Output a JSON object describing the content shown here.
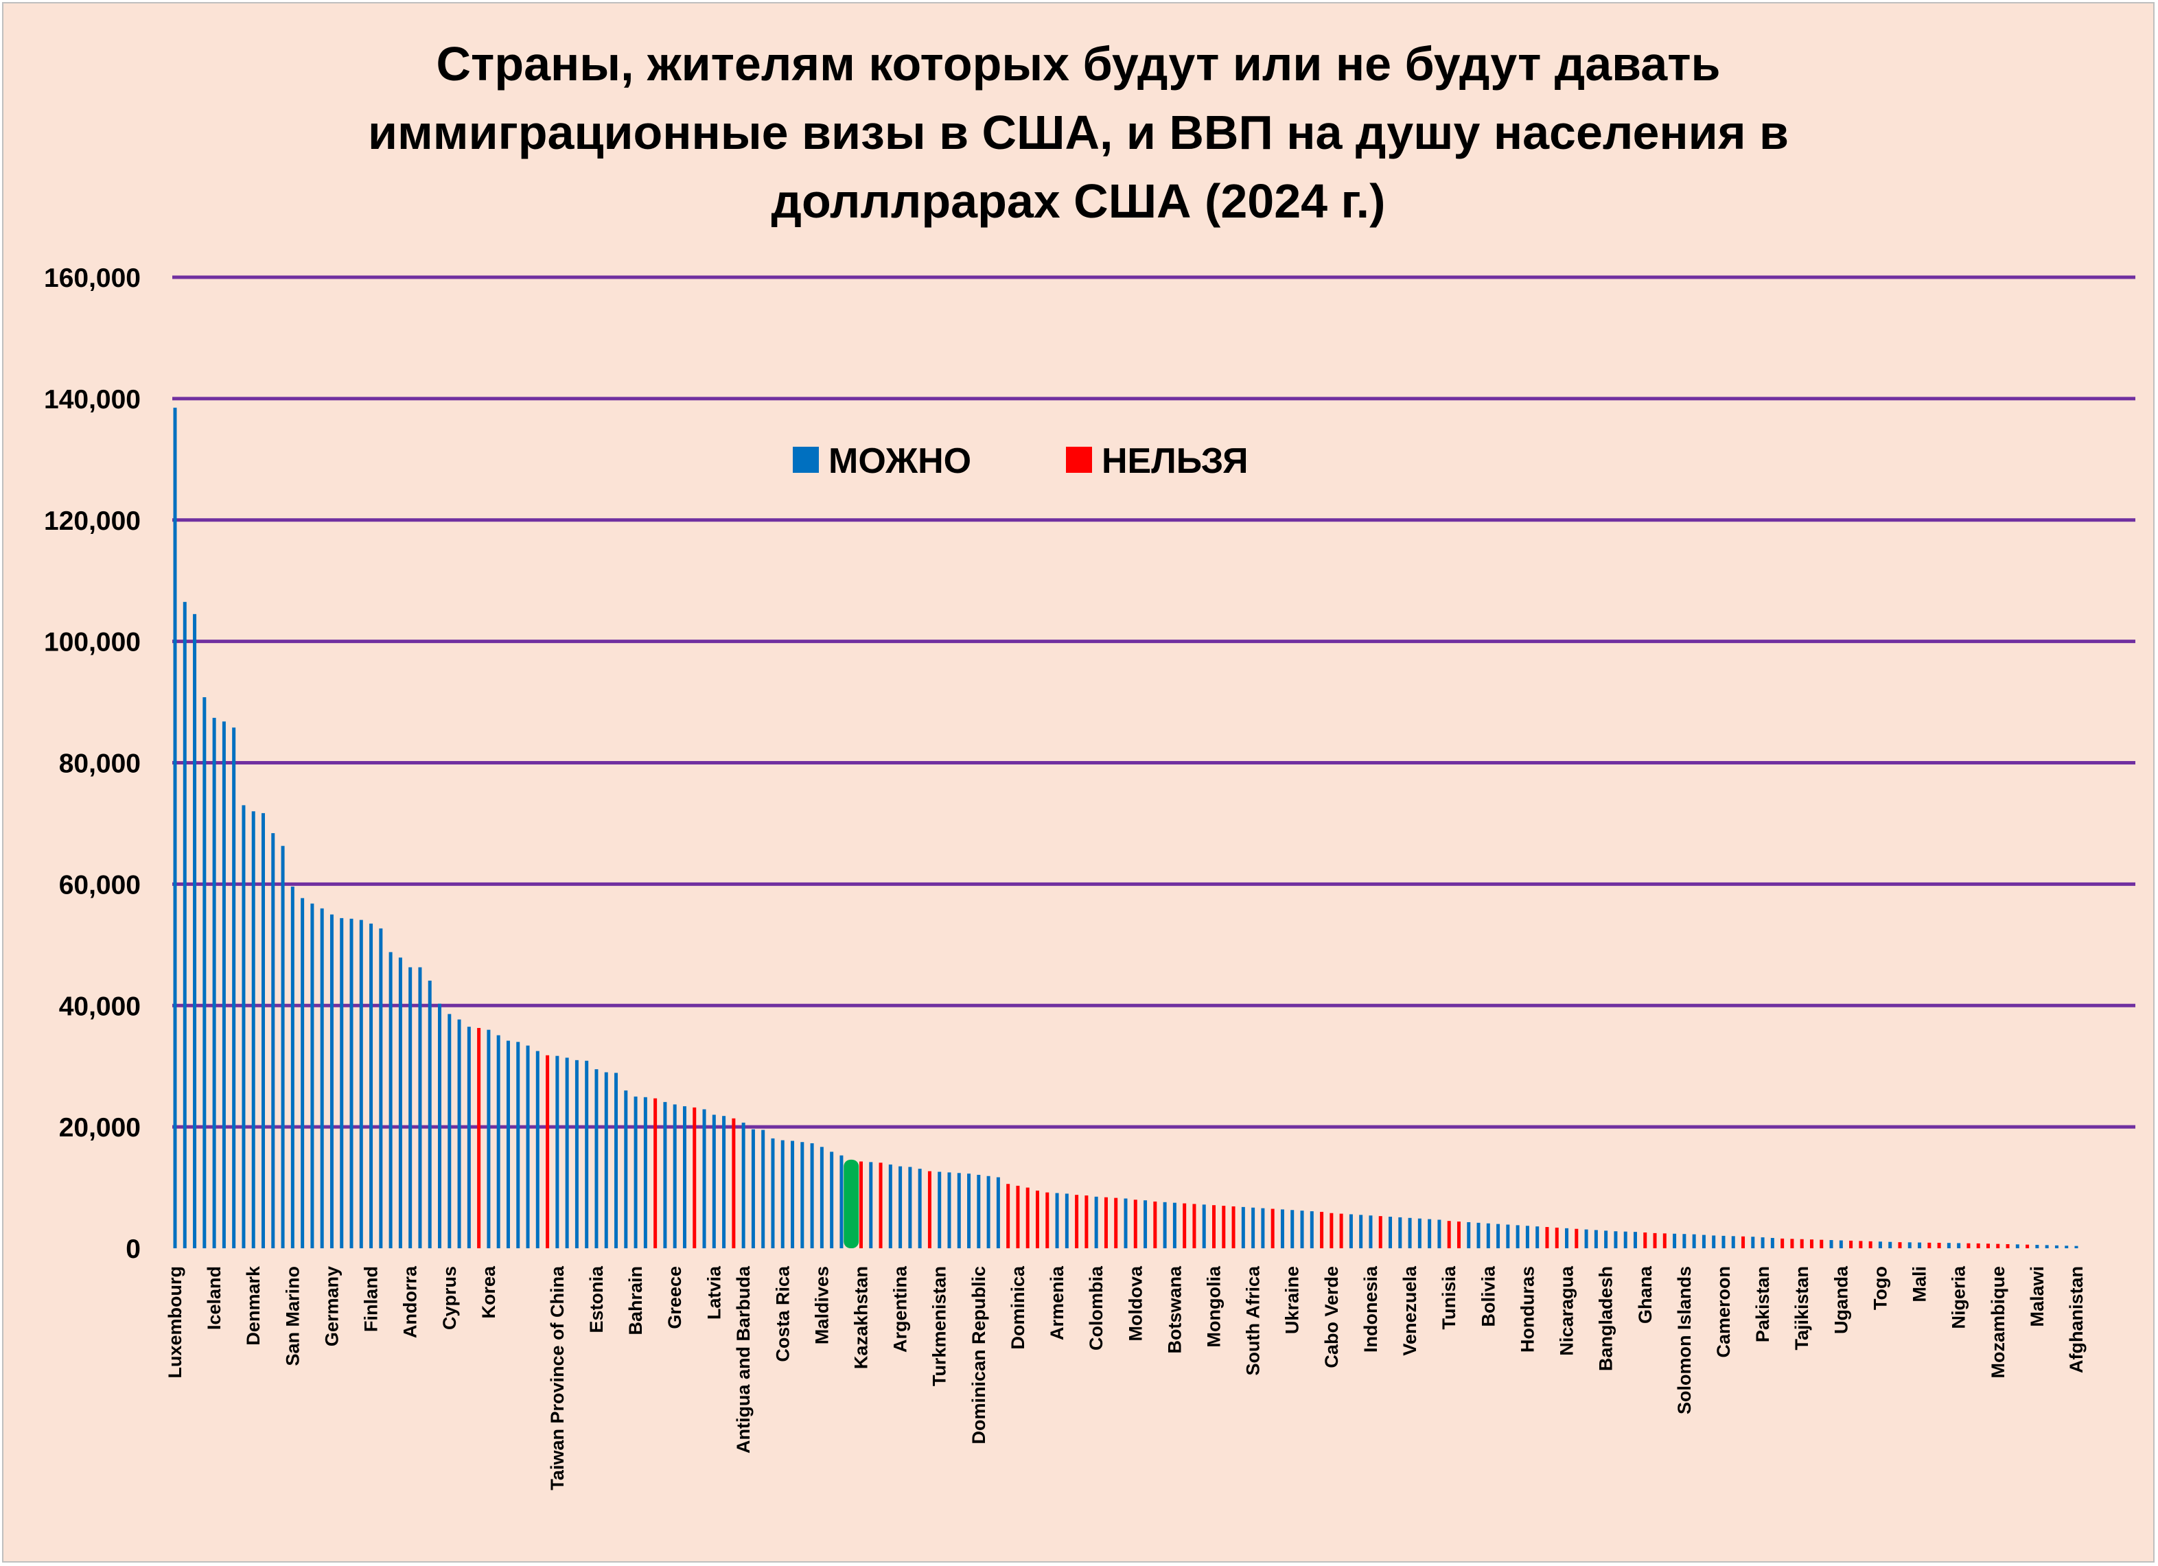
{
  "chart_data": {
    "type": "bar",
    "title_lines": [
      "Страны, жителям которых будут или не будут давать",
      "иммиграционные визы в США, и ВВП на душу населения в",
      "долллрарах США (2024 г.)"
    ],
    "ylim": [
      0,
      160000
    ],
    "yticks": [
      0,
      20000,
      40000,
      60000,
      80000,
      100000,
      120000,
      140000,
      160000
    ],
    "ytick_labels": [
      "0",
      "20,000",
      "40,000",
      "60,000",
      "80,000",
      "100,000",
      "120,000",
      "140,000",
      "160,000"
    ],
    "grid": true,
    "legend_position": "top-center",
    "legend": [
      {
        "key": "allowed",
        "label": "МОЖНО",
        "color": "#0070c0"
      },
      {
        "key": "denied",
        "label": "НЕЛЬЗЯ",
        "color": "#ff0000"
      }
    ],
    "highlight_color": "#00b050",
    "highlight_category": "Kazakhstan",
    "category_labels": [
      "Luxembourg",
      "Iceland",
      "Denmark",
      "San Marino",
      "Germany",
      "Finland",
      "Andorra",
      "Cyprus",
      "Korea",
      "Taiwan Province of China",
      "Estonia",
      "Bahrain",
      "Greece",
      "Latvia",
      "Antigua and Barbuda",
      "Costa Rica",
      "Maldives",
      "Kazakhstan",
      "Argentina",
      "Turkmenistan",
      "Dominican Republic",
      "Dominica",
      "Armenia",
      "Colombia",
      "Moldova",
      "Botswana",
      "Mongolia",
      "South Africa",
      "Ukraine",
      "Cabo Verde",
      "Indonesia",
      "Venezuela",
      "Tunisia",
      "Bolivia",
      "Honduras",
      "Nicaragua",
      "Bangladesh",
      "Ghana",
      "Solomon Islands",
      "Cameroon",
      "Pakistan",
      "Tajikistan",
      "Uganda",
      "Togo",
      "Mali",
      "Nigeria",
      "Mozambique",
      "Malawi",
      "Afghanistan"
    ],
    "label_positions": [
      0,
      4,
      8,
      12,
      16,
      20,
      24,
      28,
      32,
      39,
      43,
      47,
      51,
      55,
      58,
      62,
      66,
      70,
      74,
      78,
      82,
      86,
      90,
      94,
      98,
      102,
      106,
      110,
      114,
      118,
      122,
      126,
      130,
      134,
      138,
      142,
      146,
      150,
      154,
      158,
      162,
      166,
      170,
      174,
      178,
      182,
      186,
      190,
      194
    ],
    "values": [
      138500,
      106500,
      104500,
      90800,
      87400,
      86800,
      85800,
      73000,
      72000,
      71700,
      68400,
      66300,
      59600,
      57700,
      56800,
      56000,
      55000,
      54400,
      54300,
      54100,
      53500,
      52700,
      48800,
      47900,
      46300,
      46300,
      44100,
      40300,
      38600,
      37700,
      36500,
      36300,
      36000,
      35100,
      34200,
      34000,
      33400,
      32500,
      31800,
      31700,
      31400,
      31000,
      30900,
      29500,
      29000,
      28900,
      26000,
      25000,
      24900,
      24700,
      24100,
      23700,
      23400,
      23200,
      22900,
      22000,
      21800,
      21400,
      20700,
      19600,
      19500,
      18100,
      17800,
      17700,
      17500,
      17300,
      16700,
      15900,
      15300,
      14600,
      14300,
      14200,
      14100,
      13800,
      13500,
      13400,
      13100,
      12700,
      12600,
      12500,
      12400,
      12300,
      12100,
      11900,
      11700,
      10600,
      10300,
      10000,
      9500,
      9200,
      9100,
      9000,
      8800,
      8700,
      8500,
      8400,
      8300,
      8200,
      8000,
      7900,
      7700,
      7600,
      7500,
      7400,
      7300,
      7200,
      7100,
      7000,
      6900,
      6800,
      6700,
      6600,
      6500,
      6400,
      6300,
      6200,
      6100,
      6000,
      5800,
      5700,
      5600,
      5500,
      5400,
      5300,
      5200,
      5100,
      5000,
      4900,
      4800,
      4700,
      4500,
      4400,
      4300,
      4200,
      4100,
      4000,
      3900,
      3800,
      3700,
      3600,
      3500,
      3400,
      3300,
      3200,
      3100,
      3000,
      2900,
      2800,
      2750,
      2700,
      2600,
      2500,
      2450,
      2400,
      2350,
      2300,
      2200,
      2100,
      2050,
      2000,
      1950,
      1900,
      1800,
      1700,
      1600,
      1550,
      1500,
      1450,
      1400,
      1350,
      1300,
      1250,
      1200,
      1150,
      1100,
      1050,
      1000,
      980,
      950,
      920,
      900,
      880,
      850,
      820,
      800,
      760,
      720,
      680,
      640,
      600,
      560,
      520,
      470,
      420,
      380
    ],
    "status": [
      "a",
      "a",
      "a",
      "a",
      "a",
      "a",
      "a",
      "a",
      "a",
      "a",
      "a",
      "a",
      "a",
      "a",
      "a",
      "a",
      "a",
      "a",
      "a",
      "a",
      "a",
      "a",
      "a",
      "a",
      "a",
      "a",
      "a",
      "a",
      "a",
      "a",
      "a",
      "d",
      "a",
      "a",
      "a",
      "a",
      "a",
      "a",
      "d",
      "a",
      "a",
      "a",
      "a",
      "a",
      "a",
      "a",
      "a",
      "a",
      "a",
      "d",
      "a",
      "a",
      "a",
      "d",
      "a",
      "a",
      "a",
      "d",
      "a",
      "a",
      "a",
      "a",
      "a",
      "a",
      "a",
      "a",
      "a",
      "a",
      "a",
      "h",
      "d",
      "a",
      "d",
      "a",
      "a",
      "a",
      "a",
      "d",
      "a",
      "a",
      "a",
      "a",
      "a",
      "a",
      "a",
      "d",
      "d",
      "d",
      "d",
      "d",
      "a",
      "a",
      "d",
      "d",
      "a",
      "d",
      "d",
      "a",
      "d",
      "a",
      "d",
      "a",
      "a",
      "d",
      "d",
      "a",
      "d",
      "d",
      "d",
      "a",
      "a",
      "a",
      "d",
      "a",
      "a",
      "a",
      "a",
      "d",
      "d",
      "d",
      "a",
      "a",
      "a",
      "d",
      "a",
      "a",
      "a",
      "a",
      "a",
      "a",
      "d",
      "d",
      "a",
      "a",
      "a",
      "a",
      "a",
      "a",
      "a",
      "a",
      "d",
      "d",
      "a",
      "d",
      "a",
      "a",
      "a",
      "a",
      "a",
      "a",
      "d",
      "d",
      "d",
      "a",
      "a",
      "a",
      "a",
      "a",
      "a",
      "a",
      "d",
      "a",
      "a",
      "a",
      "d",
      "d",
      "d",
      "d",
      "d",
      "a",
      "a",
      "d",
      "d",
      "d",
      "a",
      "a",
      "d",
      "a",
      "a",
      "d",
      "d",
      "a",
      "a",
      "d",
      "d",
      "d",
      "d",
      "d",
      "a",
      "d",
      "a",
      "a",
      "a",
      "a",
      "a"
    ]
  }
}
